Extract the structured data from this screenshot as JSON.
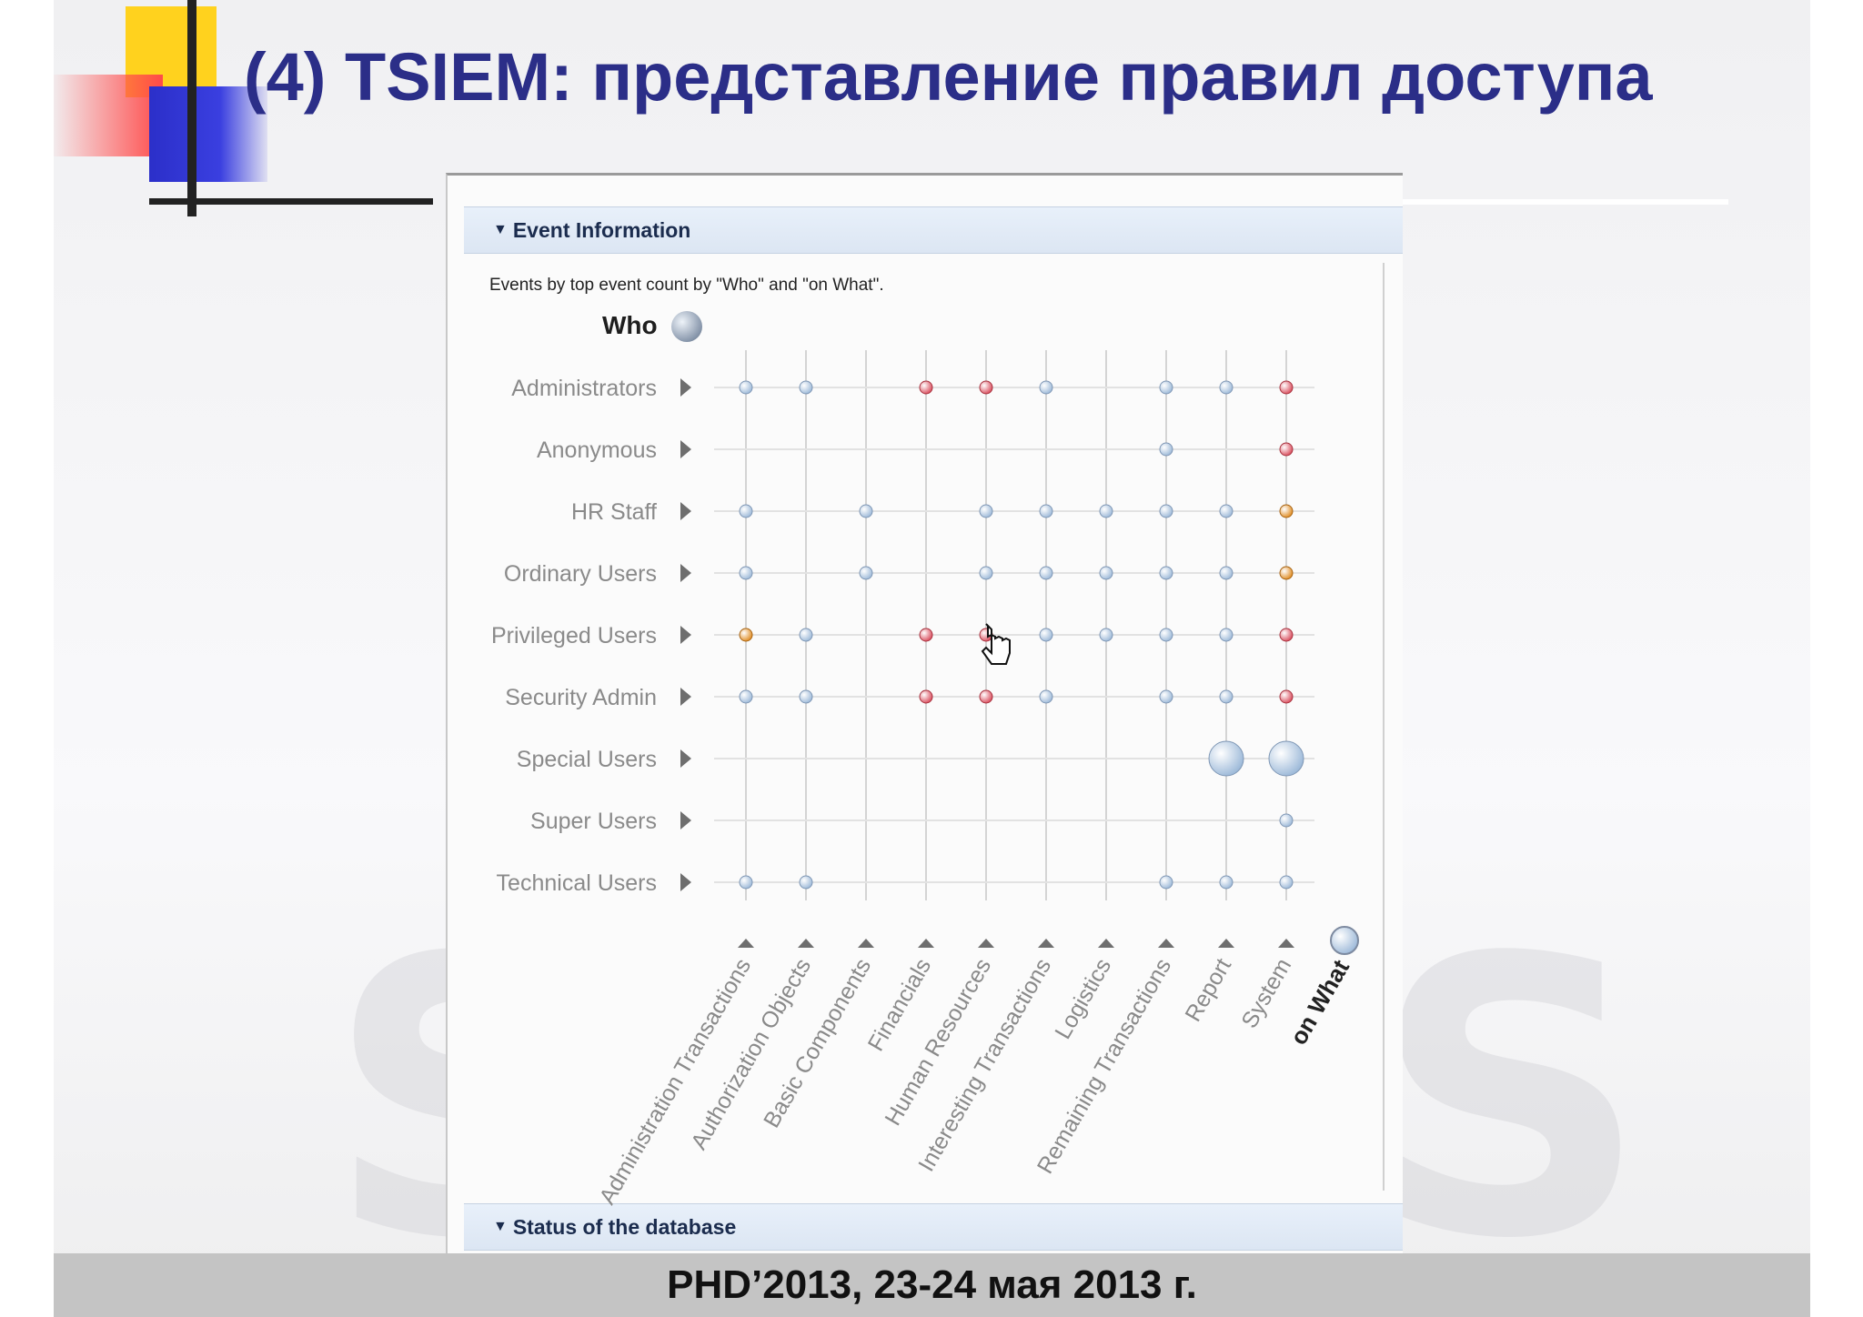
{
  "slide": {
    "title": "(4) TSIEM: представление правил доступа",
    "footer": "PHD’2013, 23-24 мая 2013 г."
  },
  "panel": {
    "event_section_title": "Event Information",
    "description": "Events by top event count by \"Who\" and \"on What\".",
    "who_label": "Who",
    "status_section_title": "Status of the database"
  },
  "colors": {
    "title": "#2b2e88",
    "dot_blue": "#9bb8d8",
    "dot_red": "#d94a5a",
    "dot_orange": "#e08a1e"
  },
  "chart_data": {
    "type": "scatter",
    "y_axis_title": "Who",
    "x_axis_title": "on What",
    "rows": [
      "Administrators",
      "Anonymous",
      "HR Staff",
      "Ordinary Users",
      "Privileged Users",
      "Security Admin",
      "Special Users",
      "Super Users",
      "Technical Users"
    ],
    "columns": [
      "Administration Transactions",
      "Authorization Objects",
      "Basic Components",
      "Financials",
      "Human Resources",
      "Interesting Transactions",
      "Logistics",
      "Remaining Transactions",
      "Report",
      "System"
    ],
    "points": [
      {
        "row": 0,
        "col": 0,
        "color": "blue",
        "size": 1
      },
      {
        "row": 0,
        "col": 1,
        "color": "blue",
        "size": 1
      },
      {
        "row": 0,
        "col": 3,
        "color": "red",
        "size": 1
      },
      {
        "row": 0,
        "col": 4,
        "color": "red",
        "size": 1
      },
      {
        "row": 0,
        "col": 5,
        "color": "blue",
        "size": 1
      },
      {
        "row": 0,
        "col": 7,
        "color": "blue",
        "size": 1
      },
      {
        "row": 0,
        "col": 8,
        "color": "blue",
        "size": 1
      },
      {
        "row": 0,
        "col": 9,
        "color": "red",
        "size": 1
      },
      {
        "row": 1,
        "col": 7,
        "color": "blue",
        "size": 1
      },
      {
        "row": 1,
        "col": 9,
        "color": "red",
        "size": 1
      },
      {
        "row": 2,
        "col": 0,
        "color": "blue",
        "size": 1
      },
      {
        "row": 2,
        "col": 2,
        "color": "blue",
        "size": 1
      },
      {
        "row": 2,
        "col": 4,
        "color": "blue",
        "size": 1
      },
      {
        "row": 2,
        "col": 5,
        "color": "blue",
        "size": 1
      },
      {
        "row": 2,
        "col": 6,
        "color": "blue",
        "size": 1
      },
      {
        "row": 2,
        "col": 7,
        "color": "blue",
        "size": 1
      },
      {
        "row": 2,
        "col": 8,
        "color": "blue",
        "size": 1
      },
      {
        "row": 2,
        "col": 9,
        "color": "orange",
        "size": 1
      },
      {
        "row": 3,
        "col": 0,
        "color": "blue",
        "size": 1
      },
      {
        "row": 3,
        "col": 2,
        "color": "blue",
        "size": 1
      },
      {
        "row": 3,
        "col": 4,
        "color": "blue",
        "size": 1
      },
      {
        "row": 3,
        "col": 5,
        "color": "blue",
        "size": 1
      },
      {
        "row": 3,
        "col": 6,
        "color": "blue",
        "size": 1
      },
      {
        "row": 3,
        "col": 7,
        "color": "blue",
        "size": 1
      },
      {
        "row": 3,
        "col": 8,
        "color": "blue",
        "size": 1
      },
      {
        "row": 3,
        "col": 9,
        "color": "orange",
        "size": 1
      },
      {
        "row": 4,
        "col": 0,
        "color": "orange",
        "size": 1
      },
      {
        "row": 4,
        "col": 1,
        "color": "blue",
        "size": 1
      },
      {
        "row": 4,
        "col": 3,
        "color": "red",
        "size": 1
      },
      {
        "row": 4,
        "col": 4,
        "color": "red",
        "size": 1
      },
      {
        "row": 4,
        "col": 5,
        "color": "blue",
        "size": 1
      },
      {
        "row": 4,
        "col": 6,
        "color": "blue",
        "size": 1
      },
      {
        "row": 4,
        "col": 7,
        "color": "blue",
        "size": 1
      },
      {
        "row": 4,
        "col": 8,
        "color": "blue",
        "size": 1
      },
      {
        "row": 4,
        "col": 9,
        "color": "red",
        "size": 1
      },
      {
        "row": 5,
        "col": 0,
        "color": "blue",
        "size": 1
      },
      {
        "row": 5,
        "col": 1,
        "color": "blue",
        "size": 1
      },
      {
        "row": 5,
        "col": 3,
        "color": "red",
        "size": 1
      },
      {
        "row": 5,
        "col": 4,
        "color": "red",
        "size": 1
      },
      {
        "row": 5,
        "col": 5,
        "color": "blue",
        "size": 1
      },
      {
        "row": 5,
        "col": 7,
        "color": "blue",
        "size": 1
      },
      {
        "row": 5,
        "col": 8,
        "color": "blue",
        "size": 1
      },
      {
        "row": 5,
        "col": 9,
        "color": "red",
        "size": 1
      },
      {
        "row": 6,
        "col": 8,
        "color": "blue",
        "size": 3
      },
      {
        "row": 6,
        "col": 9,
        "color": "blue",
        "size": 3
      },
      {
        "row": 7,
        "col": 9,
        "color": "blue",
        "size": 1
      },
      {
        "row": 8,
        "col": 0,
        "color": "blue",
        "size": 1
      },
      {
        "row": 8,
        "col": 1,
        "color": "blue",
        "size": 1
      },
      {
        "row": 8,
        "col": 7,
        "color": "blue",
        "size": 1
      },
      {
        "row": 8,
        "col": 8,
        "color": "blue",
        "size": 1
      },
      {
        "row": 8,
        "col": 9,
        "color": "blue",
        "size": 1
      }
    ],
    "grid": true
  }
}
